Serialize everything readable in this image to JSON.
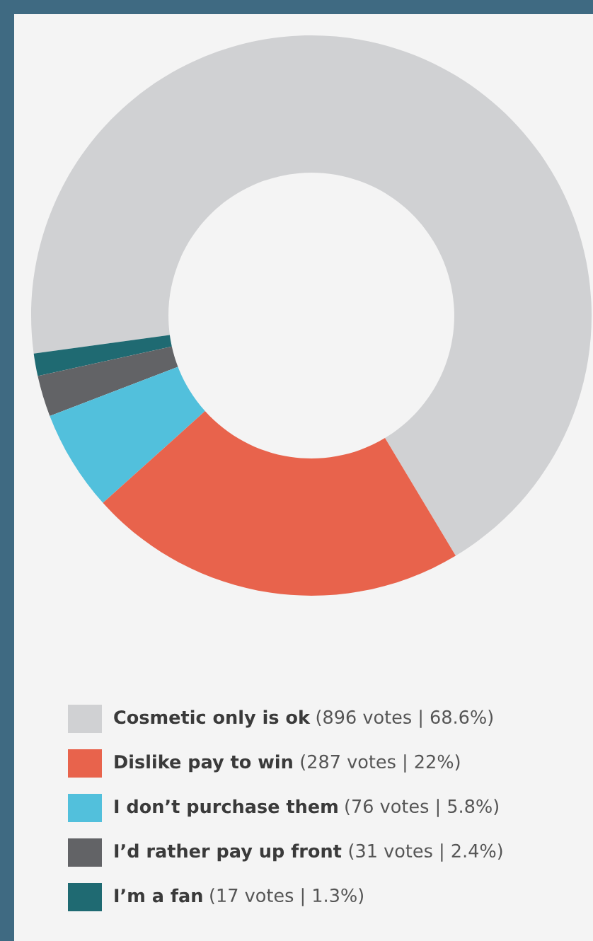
{
  "chart_data": {
    "type": "donut",
    "categories": [
      "Cosmetic only is ok",
      "Dislike pay to win",
      "I don’t purchase them",
      "I’d rather pay up front",
      "I’m a fan"
    ],
    "values": [
      896,
      287,
      76,
      31,
      17
    ],
    "value_labels": [
      "(896 votes | 68.6%)",
      "(287 votes | 22%)",
      "(76 votes | 5.8%)",
      "(31 votes | 2.4%)",
      "(17 votes | 1.3%)"
    ],
    "colors": [
      "#d0d1d3",
      "#e8634c",
      "#52c0dc",
      "#626366",
      "#1f6a72"
    ],
    "legend": "bottom"
  }
}
